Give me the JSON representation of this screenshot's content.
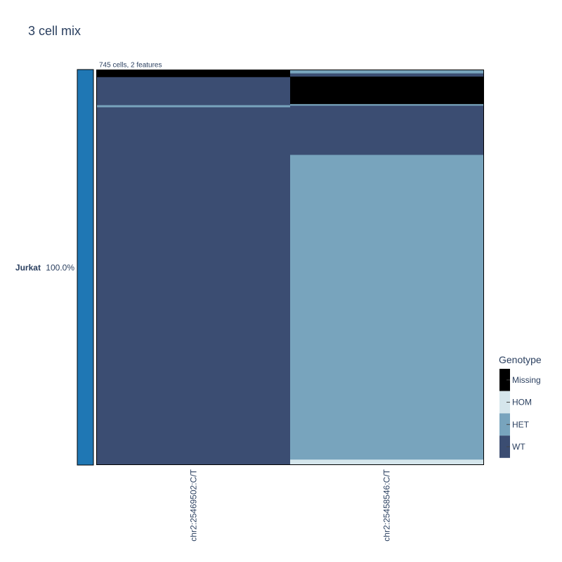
{
  "chart_data": {
    "type": "heatmap",
    "title": "3 cell mix",
    "subtitle": "745 cells, 2 features",
    "total_cells": 745,
    "features": [
      "chr2:25469502:C/T",
      "chr2:25458546:C/T"
    ],
    "clone_annotation": {
      "label_bold": "Jurkat",
      "label_pct": "100.0%",
      "color": "#1f77b4"
    },
    "legend": {
      "title": "Genotype",
      "position": "right-bottom",
      "items": [
        {
          "label": "Missing",
          "color": "#000000"
        },
        {
          "label": "HOM",
          "color": "#d5e6ec"
        },
        {
          "label": "HET",
          "color": "#78a4bd"
        },
        {
          "label": "WT",
          "color": "#3b4d72"
        }
      ]
    },
    "columns": [
      {
        "feature": "chr2:25469502:C/T",
        "segments": [
          {
            "genotype": "Missing",
            "cells": 13
          },
          {
            "genotype": "WT",
            "cells": 53
          },
          {
            "genotype": "HET",
            "cells": 4
          },
          {
            "genotype": "WT",
            "cells": 675
          }
        ]
      },
      {
        "feature": "chr2:25458546:C/T",
        "segments": [
          {
            "genotype": "HET",
            "cells": 6
          },
          {
            "genotype": "WT",
            "cells": 6
          },
          {
            "genotype": "Missing",
            "cells": 52
          },
          {
            "genotype": "HET",
            "cells": 3
          },
          {
            "genotype": "WT",
            "cells": 93
          },
          {
            "genotype": "HET",
            "cells": 576
          },
          {
            "genotype": "HOM",
            "cells": 9
          }
        ]
      }
    ]
  }
}
